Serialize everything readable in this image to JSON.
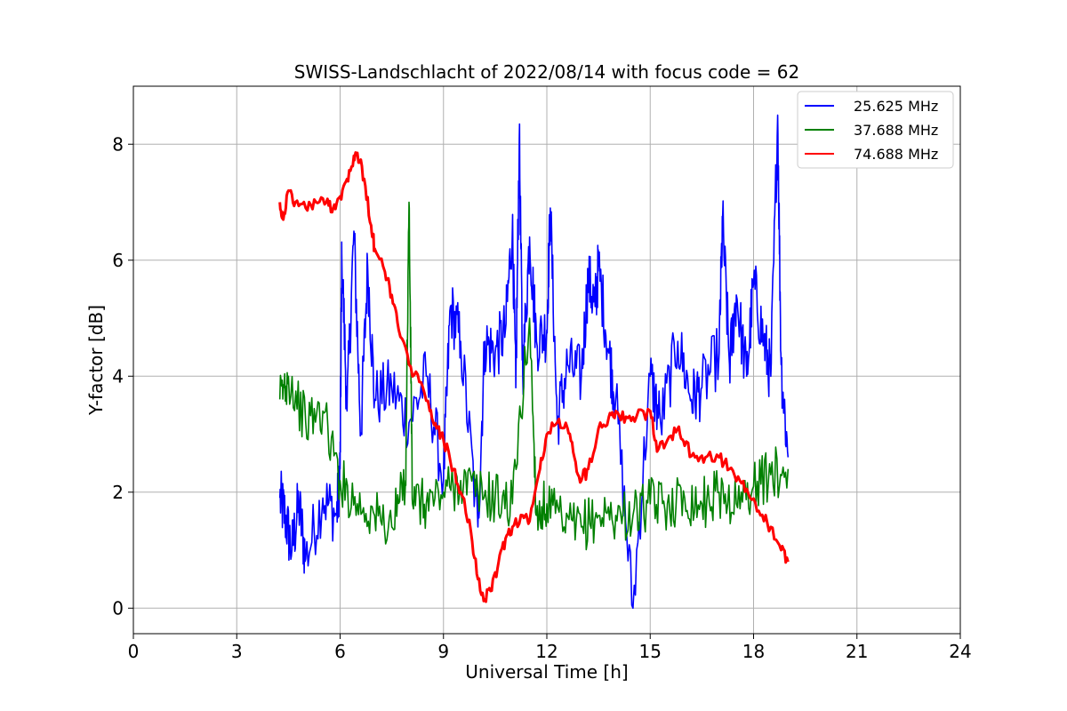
{
  "chart_data": {
    "type": "line",
    "title": "SWISS-Landschlacht of 2022/08/14 with focus code = 62",
    "xlabel": "Universal Time [h]",
    "ylabel": "Y-factor [dB]",
    "xlim": [
      0,
      24
    ],
    "ylim": [
      -0.44,
      9.0
    ],
    "xticks": [
      0,
      3,
      6,
      9,
      12,
      15,
      18,
      21,
      24
    ],
    "yticks": [
      0,
      2,
      4,
      6,
      8
    ],
    "grid": true,
    "legend_position": "top-right",
    "series": [
      {
        "name": "25.625 MHz",
        "color": "#0000ff",
        "points": [
          [
            4.25,
            1.9
          ],
          [
            4.4,
            1.6
          ],
          [
            4.6,
            1.0
          ],
          [
            4.8,
            1.8
          ],
          [
            5.0,
            0.85
          ],
          [
            5.5,
            1.9
          ],
          [
            5.9,
            1.6
          ],
          [
            6.0,
            2.4
          ],
          [
            6.05,
            6.1
          ],
          [
            6.2,
            3.4
          ],
          [
            6.4,
            6.5
          ],
          [
            6.6,
            3.0
          ],
          [
            6.8,
            5.9
          ],
          [
            7.0,
            3.6
          ],
          [
            7.5,
            3.8
          ],
          [
            8.0,
            3.2
          ],
          [
            8.5,
            4.0
          ],
          [
            9.0,
            2.2
          ],
          [
            9.2,
            5.2
          ],
          [
            9.5,
            4.6
          ],
          [
            10.0,
            1.4
          ],
          [
            10.2,
            4.6
          ],
          [
            10.5,
            4.4
          ],
          [
            10.8,
            4.8
          ],
          [
            11.0,
            6.6
          ],
          [
            11.1,
            3.8
          ],
          [
            11.2,
            8.1
          ],
          [
            11.3,
            4.0
          ],
          [
            11.5,
            6.4
          ],
          [
            11.7,
            4.6
          ],
          [
            12.0,
            4.8
          ],
          [
            12.1,
            6.9
          ],
          [
            12.3,
            3.2
          ],
          [
            12.6,
            4.2
          ],
          [
            13.0,
            4.0
          ],
          [
            13.2,
            5.7
          ],
          [
            13.4,
            5.2
          ],
          [
            13.5,
            5.9
          ],
          [
            13.8,
            4.4
          ],
          [
            14.0,
            3.6
          ],
          [
            14.5,
            0.0
          ],
          [
            15.0,
            4.0
          ],
          [
            15.3,
            3.2
          ],
          [
            15.8,
            4.6
          ],
          [
            16.2,
            3.6
          ],
          [
            16.5,
            3.8
          ],
          [
            17.0,
            4.4
          ],
          [
            17.1,
            6.7
          ],
          [
            17.3,
            4.2
          ],
          [
            17.5,
            5.4
          ],
          [
            17.8,
            4.0
          ],
          [
            18.0,
            5.6
          ],
          [
            18.3,
            4.6
          ],
          [
            18.5,
            4.0
          ],
          [
            18.7,
            8.5
          ],
          [
            18.8,
            4.2
          ],
          [
            19.0,
            2.6
          ]
        ]
      },
      {
        "name": "37.688 MHz",
        "color": "#008000",
        "points": [
          [
            4.25,
            3.6
          ],
          [
            4.5,
            4.0
          ],
          [
            5.0,
            3.2
          ],
          [
            5.5,
            3.4
          ],
          [
            6.0,
            2.2
          ],
          [
            6.5,
            1.8
          ],
          [
            7.0,
            1.6
          ],
          [
            7.5,
            1.4
          ],
          [
            7.9,
            2.2
          ],
          [
            8.0,
            7.0
          ],
          [
            8.1,
            1.8
          ],
          [
            8.5,
            1.8
          ],
          [
            9.0,
            2.0
          ],
          [
            9.5,
            2.2
          ],
          [
            10.0,
            2.0
          ],
          [
            10.5,
            1.9
          ],
          [
            11.0,
            1.8
          ],
          [
            11.5,
            5.0
          ],
          [
            11.7,
            1.6
          ],
          [
            12.0,
            1.8
          ],
          [
            12.5,
            1.4
          ],
          [
            13.0,
            1.4
          ],
          [
            13.5,
            1.6
          ],
          [
            14.0,
            1.6
          ],
          [
            14.5,
            1.6
          ],
          [
            15.0,
            1.8
          ],
          [
            15.5,
            1.8
          ],
          [
            16.0,
            1.9
          ],
          [
            16.5,
            1.8
          ],
          [
            17.0,
            2.0
          ],
          [
            17.5,
            1.8
          ],
          [
            18.0,
            2.1
          ],
          [
            18.5,
            2.3
          ],
          [
            19.0,
            2.4
          ]
        ]
      },
      {
        "name": "74.688 MHz",
        "color": "#ff0000",
        "points": [
          [
            4.25,
            7.0
          ],
          [
            4.35,
            6.7
          ],
          [
            4.5,
            7.2
          ],
          [
            4.7,
            7.0
          ],
          [
            5.0,
            6.9
          ],
          [
            5.3,
            7.0
          ],
          [
            5.6,
            7.0
          ],
          [
            5.8,
            6.9
          ],
          [
            6.0,
            7.1
          ],
          [
            6.2,
            7.4
          ],
          [
            6.4,
            7.8
          ],
          [
            6.5,
            7.85
          ],
          [
            6.7,
            7.4
          ],
          [
            6.9,
            6.6
          ],
          [
            7.0,
            6.2
          ],
          [
            7.3,
            5.8
          ],
          [
            7.5,
            5.4
          ],
          [
            7.7,
            4.8
          ],
          [
            8.0,
            4.2
          ],
          [
            8.3,
            3.9
          ],
          [
            8.6,
            3.4
          ],
          [
            8.8,
            3.1
          ],
          [
            9.0,
            2.9
          ],
          [
            9.3,
            2.4
          ],
          [
            9.5,
            2.0
          ],
          [
            9.8,
            1.3
          ],
          [
            10.0,
            0.5
          ],
          [
            10.2,
            0.15
          ],
          [
            10.4,
            0.3
          ],
          [
            10.6,
            0.8
          ],
          [
            10.8,
            1.2
          ],
          [
            11.0,
            1.4
          ],
          [
            11.3,
            1.6
          ],
          [
            11.5,
            1.5
          ],
          [
            11.8,
            2.4
          ],
          [
            12.0,
            3.0
          ],
          [
            12.3,
            3.2
          ],
          [
            12.6,
            3.1
          ],
          [
            12.8,
            2.6
          ],
          [
            13.0,
            2.2
          ],
          [
            13.2,
            2.4
          ],
          [
            13.5,
            3.1
          ],
          [
            13.8,
            3.3
          ],
          [
            14.0,
            3.4
          ],
          [
            14.3,
            3.3
          ],
          [
            14.6,
            3.3
          ],
          [
            15.0,
            3.4
          ],
          [
            15.2,
            2.7
          ],
          [
            15.5,
            2.9
          ],
          [
            15.8,
            3.1
          ],
          [
            16.0,
            2.8
          ],
          [
            16.3,
            2.6
          ],
          [
            16.6,
            2.6
          ],
          [
            17.0,
            2.6
          ],
          [
            17.3,
            2.4
          ],
          [
            17.6,
            2.2
          ],
          [
            17.9,
            1.9
          ],
          [
            18.2,
            1.6
          ],
          [
            18.5,
            1.4
          ],
          [
            18.8,
            1.0
          ],
          [
            19.0,
            0.8
          ]
        ]
      }
    ]
  }
}
